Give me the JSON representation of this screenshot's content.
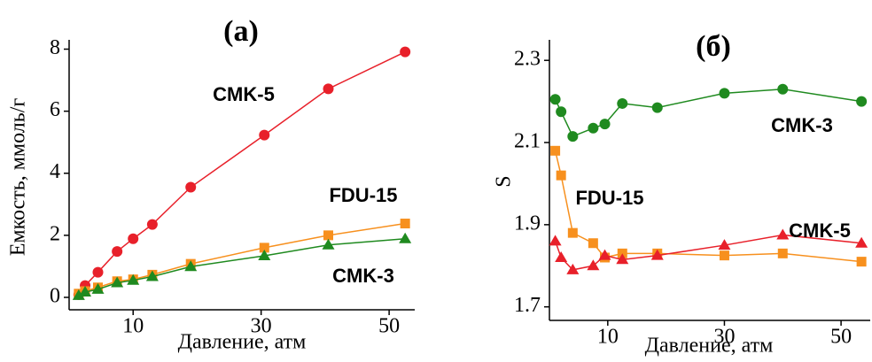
{
  "chart_data": [
    {
      "type": "line",
      "title": "(a)",
      "x_label": "Давление, атм",
      "y_label": "Емкость, ммоль/г",
      "xlim": [
        0,
        54
      ],
      "xticks": [
        10,
        30,
        50
      ],
      "ylim": [
        -0.4,
        8.3
      ],
      "yticks": [
        0,
        2,
        4,
        6,
        8
      ],
      "x": [
        1.5,
        2.5,
        4.5,
        7.5,
        10,
        13,
        19,
        30.5,
        40.5,
        52.5
      ],
      "series": [
        {
          "name": "CMK-5",
          "color": "#e8202a",
          "marker": "circle",
          "values": [
            0.09,
            0.38,
            0.81,
            1.48,
            1.89,
            2.35,
            3.55,
            5.23,
            6.72,
            7.91
          ]
        },
        {
          "name": "FDU-15",
          "color": "#f7901e",
          "marker": "square",
          "values": [
            0.12,
            0.2,
            0.32,
            0.52,
            0.58,
            0.73,
            1.08,
            1.6,
            2.0,
            2.38
          ]
        },
        {
          "name": "CMK-3",
          "color": "#1f8a1f",
          "marker": "triangle",
          "values": [
            0.06,
            0.17,
            0.26,
            0.47,
            0.55,
            0.67,
            0.99,
            1.34,
            1.69,
            1.89
          ]
        }
      ]
    },
    {
      "type": "line",
      "title": "(б)",
      "x_label": "Давление, атм",
      "y_label": "S",
      "xlim": [
        0,
        55
      ],
      "xticks": [
        10,
        30,
        50
      ],
      "ylim": [
        1.667,
        2.35
      ],
      "yticks": [
        1.7,
        1.9,
        2.1,
        2.3
      ],
      "x": [
        1,
        2,
        4,
        7.5,
        9.5,
        12.5,
        18.5,
        30,
        40,
        53.5
      ],
      "series": [
        {
          "name": "CMK-3",
          "color": "#1f8a1f",
          "marker": "circle",
          "values": [
            2.205,
            2.175,
            2.115,
            2.135,
            2.145,
            2.195,
            2.185,
            2.22,
            2.23,
            2.2
          ]
        },
        {
          "name": "FDU-15",
          "color": "#f7901e",
          "marker": "square",
          "values": [
            2.08,
            2.02,
            1.88,
            1.855,
            1.82,
            1.83,
            1.83,
            1.825,
            1.83,
            1.81
          ]
        },
        {
          "name": "CMK-5",
          "color": "#e8202a",
          "marker": "triangle",
          "values": [
            1.86,
            1.82,
            1.79,
            1.8,
            1.825,
            1.815,
            1.825,
            1.85,
            1.875,
            1.855
          ]
        }
      ]
    }
  ]
}
